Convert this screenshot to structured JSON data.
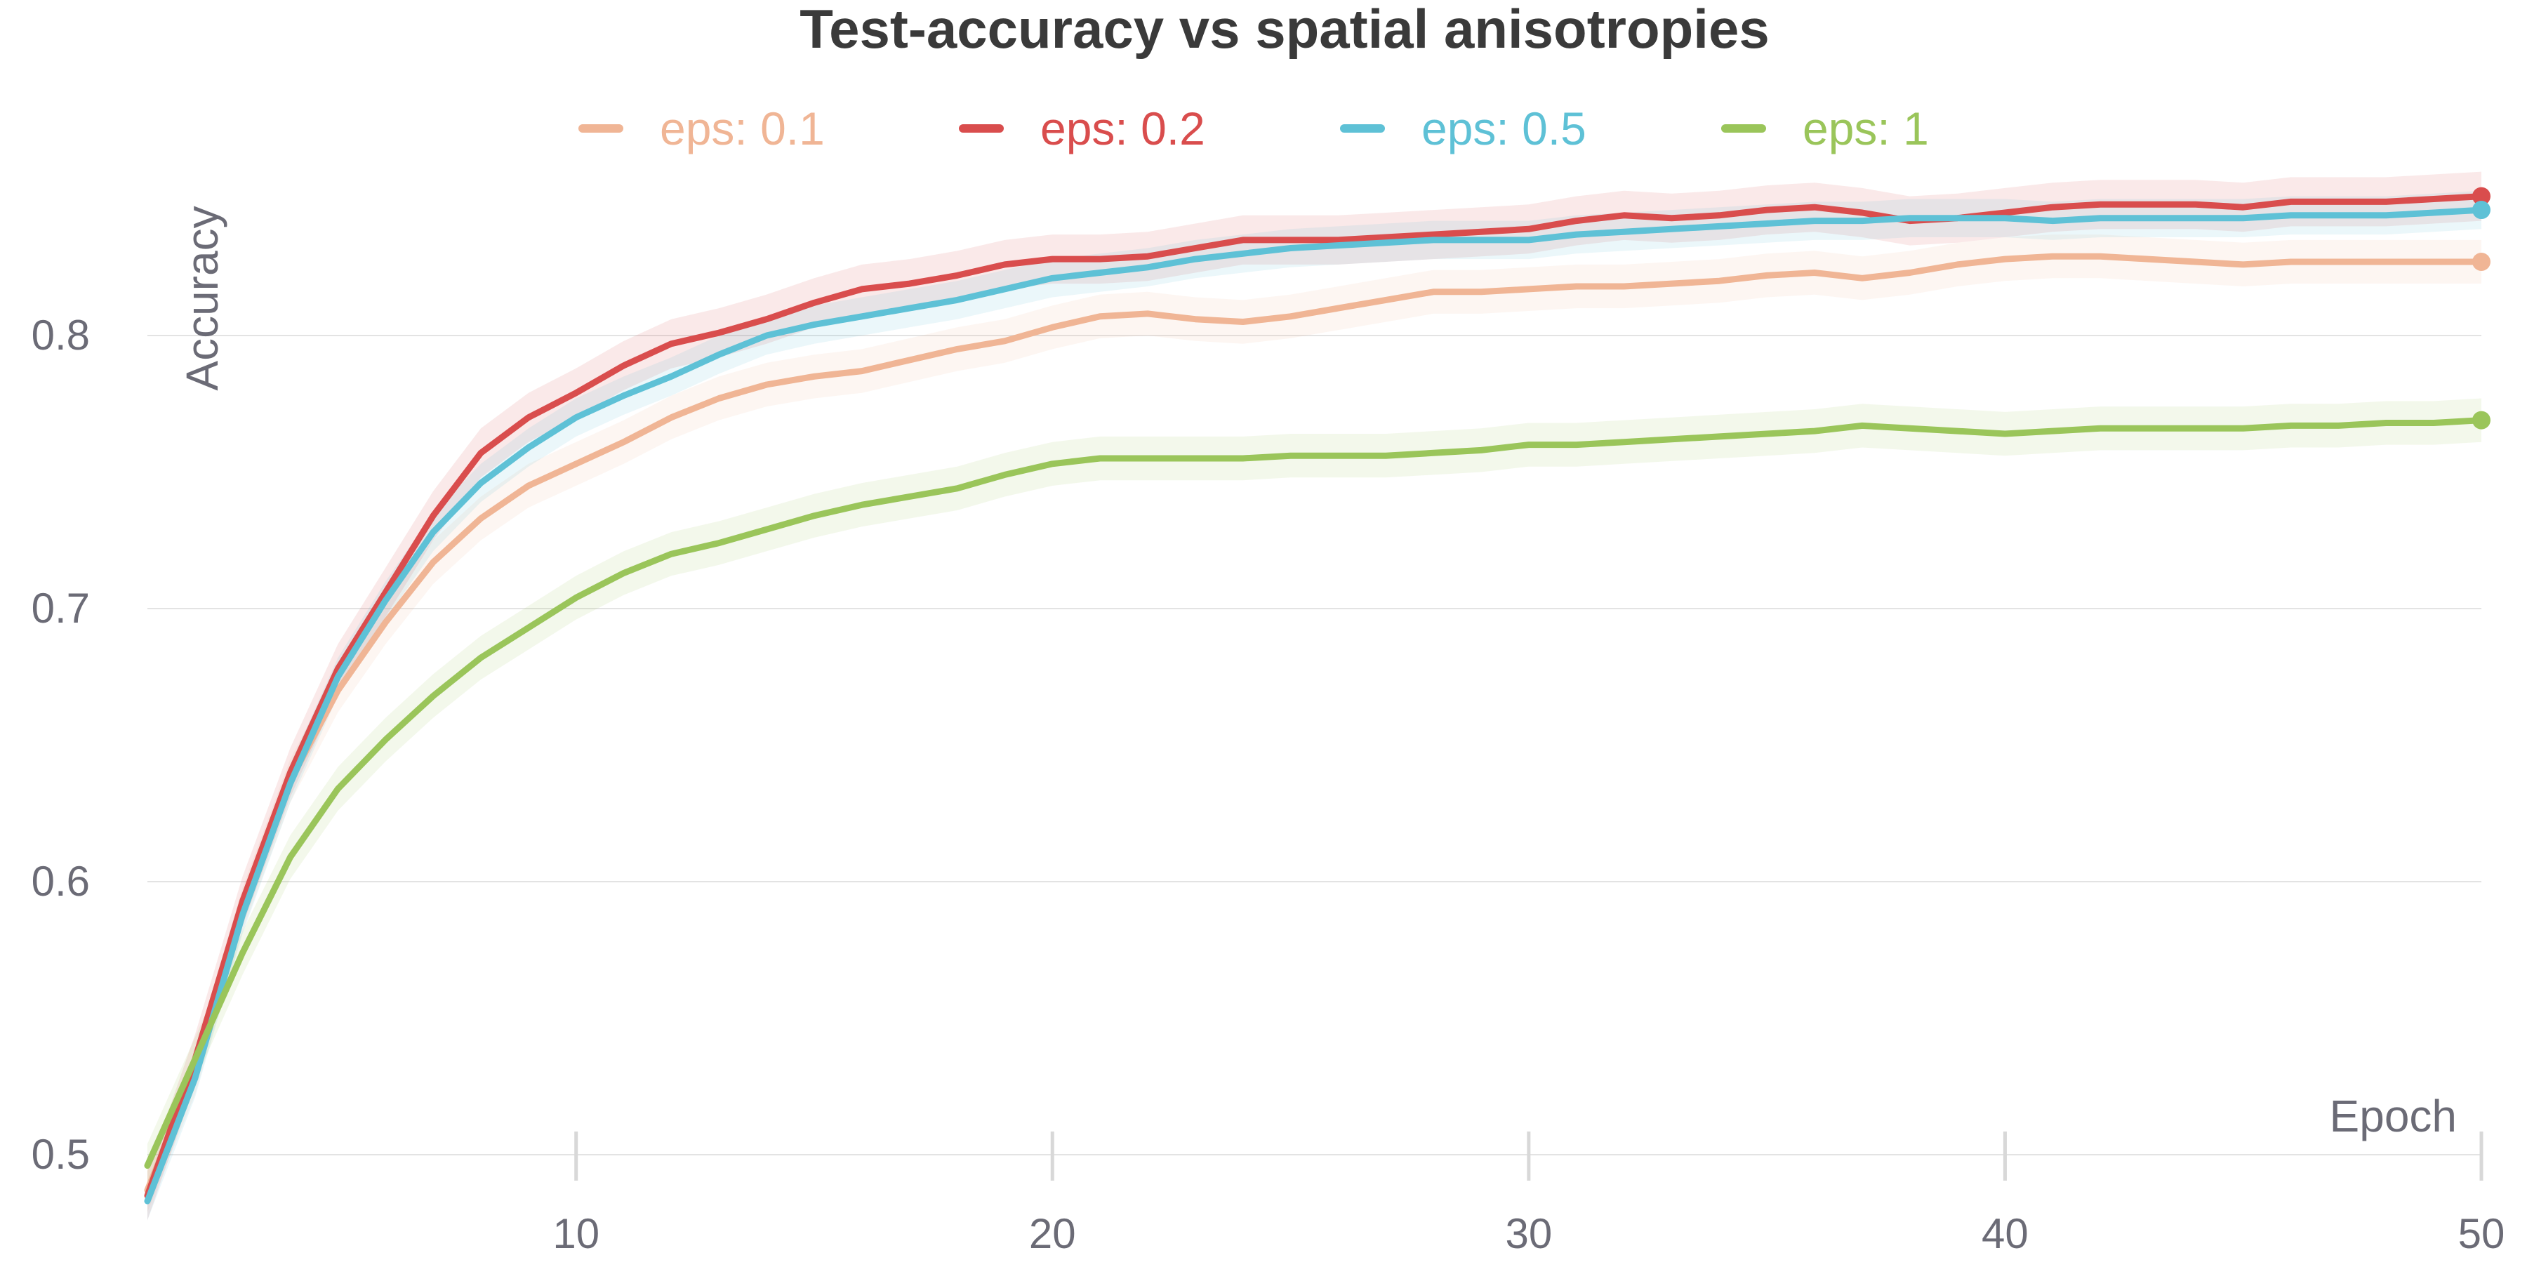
{
  "chart_data": {
    "type": "line",
    "title": "Test-accuracy vs spatial anisotropies",
    "xlabel": "Epoch",
    "ylabel": "Accuracy",
    "xlim": [
      1,
      50
    ],
    "ylim": [
      0.5,
      0.86
    ],
    "x_ticks": [
      10,
      20,
      30,
      40,
      50
    ],
    "y_ticks": [
      0.5,
      0.6,
      0.7,
      0.8
    ],
    "grid": "horizontal",
    "legend_position": "top",
    "x": [
      1,
      2,
      3,
      4,
      5,
      6,
      7,
      8,
      9,
      10,
      11,
      12,
      13,
      14,
      15,
      16,
      17,
      18,
      19,
      20,
      21,
      22,
      23,
      24,
      25,
      26,
      27,
      28,
      29,
      30,
      31,
      32,
      33,
      34,
      35,
      36,
      37,
      38,
      39,
      40,
      41,
      42,
      43,
      44,
      45,
      46,
      47,
      48,
      49,
      50
    ],
    "series": [
      {
        "name": "eps: 0.1",
        "color": "#f0b595",
        "values": [
          0.487,
          0.53,
          0.59,
          0.637,
          0.67,
          0.695,
          0.717,
          0.733,
          0.745,
          0.753,
          0.761,
          0.77,
          0.777,
          0.782,
          0.785,
          0.787,
          0.791,
          0.795,
          0.798,
          0.803,
          0.807,
          0.808,
          0.806,
          0.805,
          0.807,
          0.81,
          0.813,
          0.816,
          0.816,
          0.817,
          0.818,
          0.818,
          0.819,
          0.82,
          0.822,
          0.823,
          0.821,
          0.823,
          0.826,
          0.828,
          0.829,
          0.829,
          0.828,
          0.827,
          0.826,
          0.827,
          0.827,
          0.827,
          0.827,
          0.827
        ],
        "band": 0.008
      },
      {
        "name": "eps: 0.2",
        "color": "#d94d4d",
        "values": [
          0.485,
          0.535,
          0.593,
          0.64,
          0.678,
          0.706,
          0.734,
          0.757,
          0.77,
          0.779,
          0.789,
          0.797,
          0.801,
          0.806,
          0.812,
          0.817,
          0.819,
          0.822,
          0.826,
          0.828,
          0.828,
          0.829,
          0.832,
          0.835,
          0.835,
          0.835,
          0.836,
          0.837,
          0.838,
          0.839,
          0.842,
          0.844,
          0.843,
          0.844,
          0.846,
          0.847,
          0.845,
          0.842,
          0.843,
          0.845,
          0.847,
          0.848,
          0.848,
          0.848,
          0.847,
          0.849,
          0.849,
          0.849,
          0.85,
          0.851
        ],
        "band": 0.009
      },
      {
        "name": "eps: 0.5",
        "color": "#5ec1d6",
        "values": [
          0.483,
          0.528,
          0.588,
          0.636,
          0.675,
          0.703,
          0.728,
          0.746,
          0.759,
          0.77,
          0.778,
          0.785,
          0.793,
          0.8,
          0.804,
          0.807,
          0.81,
          0.813,
          0.817,
          0.821,
          0.823,
          0.825,
          0.828,
          0.83,
          0.832,
          0.833,
          0.834,
          0.835,
          0.835,
          0.835,
          0.837,
          0.838,
          0.839,
          0.84,
          0.841,
          0.842,
          0.842,
          0.843,
          0.843,
          0.843,
          0.842,
          0.843,
          0.843,
          0.843,
          0.843,
          0.844,
          0.844,
          0.844,
          0.845,
          0.846
        ],
        "band": 0.007
      },
      {
        "name": "eps: 1",
        "color": "#9ac55a",
        "values": [
          0.496,
          0.535,
          0.574,
          0.609,
          0.634,
          0.652,
          0.668,
          0.682,
          0.693,
          0.704,
          0.713,
          0.72,
          0.724,
          0.729,
          0.734,
          0.738,
          0.741,
          0.744,
          0.749,
          0.753,
          0.755,
          0.755,
          0.755,
          0.755,
          0.756,
          0.756,
          0.756,
          0.757,
          0.758,
          0.76,
          0.76,
          0.761,
          0.762,
          0.763,
          0.764,
          0.765,
          0.767,
          0.766,
          0.765,
          0.764,
          0.765,
          0.766,
          0.766,
          0.766,
          0.766,
          0.767,
          0.767,
          0.768,
          0.768,
          0.769
        ],
        "band": 0.008
      }
    ]
  }
}
